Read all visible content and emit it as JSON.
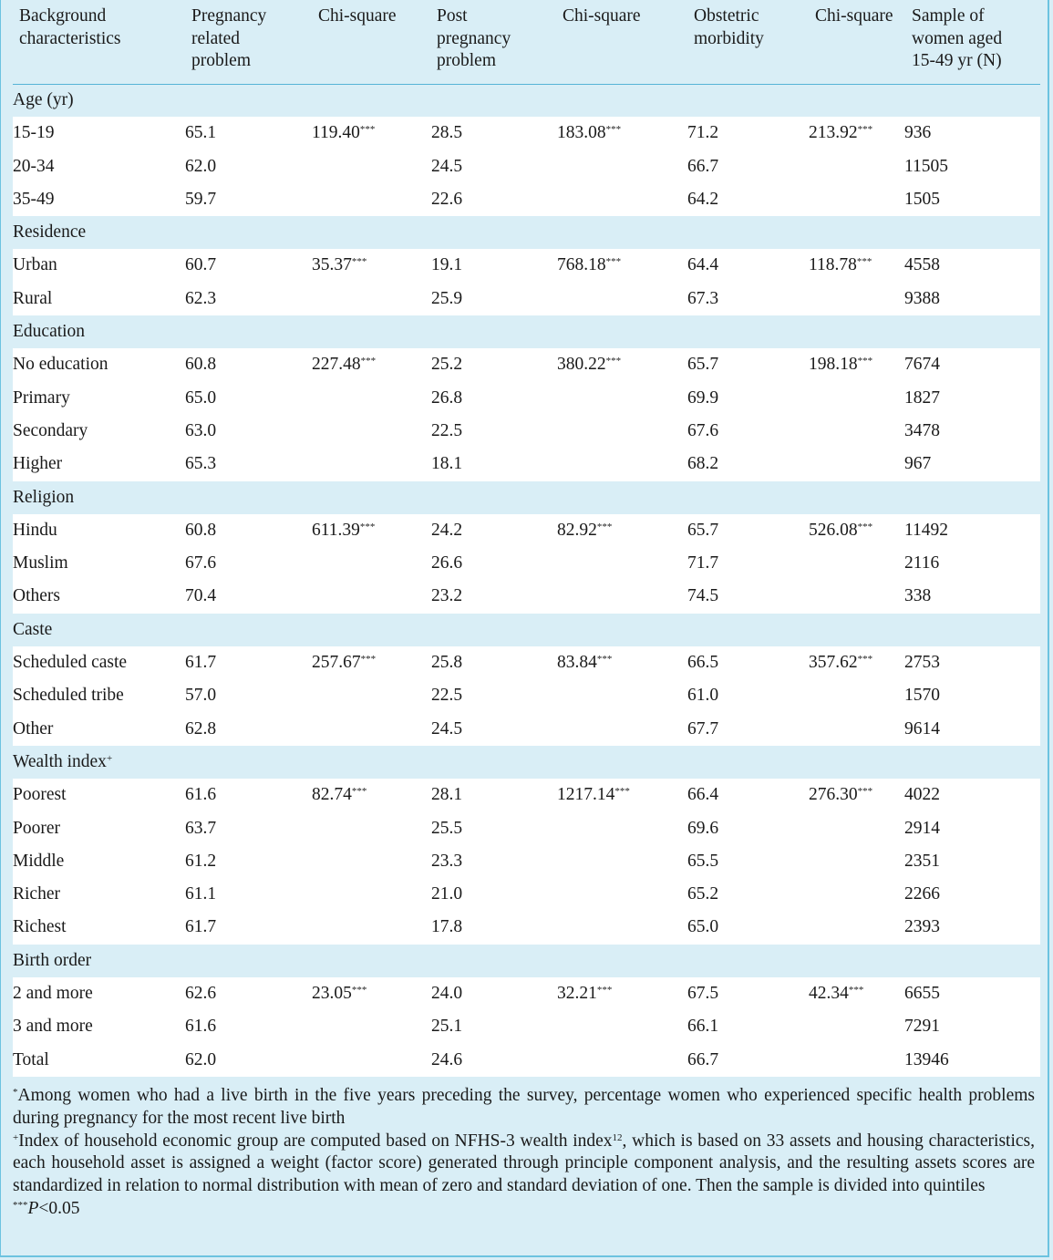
{
  "header": {
    "col1": "Background\ncharacteristics",
    "col2": "Pregnancy\nrelated\nproblem",
    "col3": "Chi-square",
    "col4": "Post\npregnancy\nproblem",
    "col5": "Chi-square",
    "col6": "Obstetric\nmorbidity",
    "col7": "Chi-square",
    "col8": "Sample of\nwomen aged\n15-49 yr (N)"
  },
  "rows": [
    {
      "type": "section",
      "label": "Age (yr)"
    },
    {
      "type": "data",
      "label": "15-19",
      "preg": "65.1",
      "chi1": "119.40",
      "post": "28.5",
      "chi2": "183.08",
      "obst": "71.2",
      "chi3": "213.92",
      "n": "936"
    },
    {
      "type": "data",
      "label": "20-34",
      "preg": "62.0",
      "chi1": "",
      "post": "24.5",
      "chi2": "",
      "obst": "66.7",
      "chi3": "",
      "n": "11505"
    },
    {
      "type": "data",
      "label": "35-49",
      "preg": "59.7",
      "chi1": "",
      "post": "22.6",
      "chi2": "",
      "obst": "64.2",
      "chi3": "",
      "n": "1505"
    },
    {
      "type": "section",
      "label": "Residence"
    },
    {
      "type": "data",
      "label": "Urban",
      "preg": "60.7",
      "chi1": "35.37",
      "post": "19.1",
      "chi2": "768.18",
      "obst": "64.4",
      "chi3": "118.78",
      "n": "4558"
    },
    {
      "type": "data",
      "label": "Rural",
      "preg": "62.3",
      "chi1": "",
      "post": "25.9",
      "chi2": "",
      "obst": "67.3",
      "chi3": "",
      "n": "9388"
    },
    {
      "type": "section",
      "label": "Education"
    },
    {
      "type": "data",
      "label": "No education",
      "preg": "60.8",
      "chi1": "227.48",
      "post": "25.2",
      "chi2": "380.22",
      "obst": "65.7",
      "chi3": "198.18",
      "n": "7674"
    },
    {
      "type": "data",
      "label": "Primary",
      "preg": "65.0",
      "chi1": "",
      "post": "26.8",
      "chi2": "",
      "obst": "69.9",
      "chi3": "",
      "n": "1827"
    },
    {
      "type": "data",
      "label": "Secondary",
      "preg": "63.0",
      "chi1": "",
      "post": "22.5",
      "chi2": "",
      "obst": "67.6",
      "chi3": "",
      "n": "3478"
    },
    {
      "type": "data",
      "label": "Higher",
      "preg": "65.3",
      "chi1": "",
      "post": "18.1",
      "chi2": "",
      "obst": "68.2",
      "chi3": "",
      "n": "967"
    },
    {
      "type": "section",
      "label": "Religion"
    },
    {
      "type": "data",
      "label": "Hindu",
      "preg": "60.8",
      "chi1": "611.39",
      "post": "24.2",
      "chi2": "82.92",
      "obst": "65.7",
      "chi3": "526.08",
      "n": "11492"
    },
    {
      "type": "data",
      "label": "Muslim",
      "preg": "67.6",
      "chi1": "",
      "post": "26.6",
      "chi2": "",
      "obst": "71.7",
      "chi3": "",
      "n": "2116"
    },
    {
      "type": "data",
      "label": "Others",
      "preg": "70.4",
      "chi1": "",
      "post": "23.2",
      "chi2": "",
      "obst": "74.5",
      "chi3": "",
      "n": "338"
    },
    {
      "type": "section",
      "label": "Caste"
    },
    {
      "type": "data",
      "label": "Scheduled caste",
      "preg": "61.7",
      "chi1": "257.67",
      "post": "25.8",
      "chi2": "83.84",
      "obst": "66.5",
      "chi3": "357.62",
      "n": "2753"
    },
    {
      "type": "data",
      "label": "Scheduled tribe",
      "preg": "57.0",
      "chi1": "",
      "post": "22.5",
      "chi2": "",
      "obst": "61.0",
      "chi3": "",
      "n": "1570"
    },
    {
      "type": "data",
      "label": "Other",
      "preg": "62.8",
      "chi1": "",
      "post": "24.5",
      "chi2": "",
      "obst": "67.7",
      "chi3": "",
      "n": "9614"
    },
    {
      "type": "section",
      "label": "Wealth index",
      "sup": "+"
    },
    {
      "type": "data",
      "label": "Poorest",
      "preg": "61.6",
      "chi1": "82.74",
      "post": "28.1",
      "chi2": "1217.14",
      "obst": "66.4",
      "chi3": "276.30",
      "n": "4022"
    },
    {
      "type": "data",
      "label": "Poorer",
      "preg": "63.7",
      "chi1": "",
      "post": "25.5",
      "chi2": "",
      "obst": "69.6",
      "chi3": "",
      "n": "2914"
    },
    {
      "type": "data",
      "label": "Middle",
      "preg": "61.2",
      "chi1": "",
      "post": "23.3",
      "chi2": "",
      "obst": "65.5",
      "chi3": "",
      "n": "2351"
    },
    {
      "type": "data",
      "label": "Richer",
      "preg": "61.1",
      "chi1": "",
      "post": "21.0",
      "chi2": "",
      "obst": "65.2",
      "chi3": "",
      "n": "2266"
    },
    {
      "type": "data",
      "label": "Richest",
      "preg": "61.7",
      "chi1": "",
      "post": "17.8",
      "chi2": "",
      "obst": "65.0",
      "chi3": "",
      "n": "2393"
    },
    {
      "type": "section",
      "label": "Birth order"
    },
    {
      "type": "data",
      "label": "2 and more",
      "preg": "62.6",
      "chi1": "23.05",
      "post": "24.0",
      "chi2": "32.21",
      "obst": "67.5",
      "chi3": "42.34",
      "n": "6655"
    },
    {
      "type": "data",
      "label": "3 and more",
      "preg": "61.6",
      "chi1": "",
      "post": "25.1",
      "chi2": "",
      "obst": "66.1",
      "chi3": "",
      "n": "7291"
    },
    {
      "type": "data",
      "label": "Total",
      "preg": "62.0",
      "chi1": "",
      "post": "24.6",
      "chi2": "",
      "obst": "66.7",
      "chi3": "",
      "n": "13946"
    }
  ],
  "significance_marker": "***",
  "footnotes": {
    "note1_marker": "*",
    "note1": "Among women who had a live birth in the five years preceding the survey, percentage women who experienced specific health problems during pregnancy for the most recent live birth",
    "note2_marker": "+",
    "note2_a": "Index of household economic group are computed based on NFHS-3 wealth index",
    "note2_ref": "12",
    "note2_b": ", which is based on 33 assets and housing characteristics, each household asset is assigned a weight (factor score) generated through principle component analysis, and the resulting assets scores are standardized in relation to normal distribution with mean of zero and standard deviation of one. Then the sample is divided into quintiles",
    "note3_marker": "***",
    "note3_italic": "P",
    "note3_rest": "<0.05"
  },
  "colors": {
    "background": "#d9eef6",
    "row_white": "#ffffff",
    "rule": "#56b4d6"
  }
}
